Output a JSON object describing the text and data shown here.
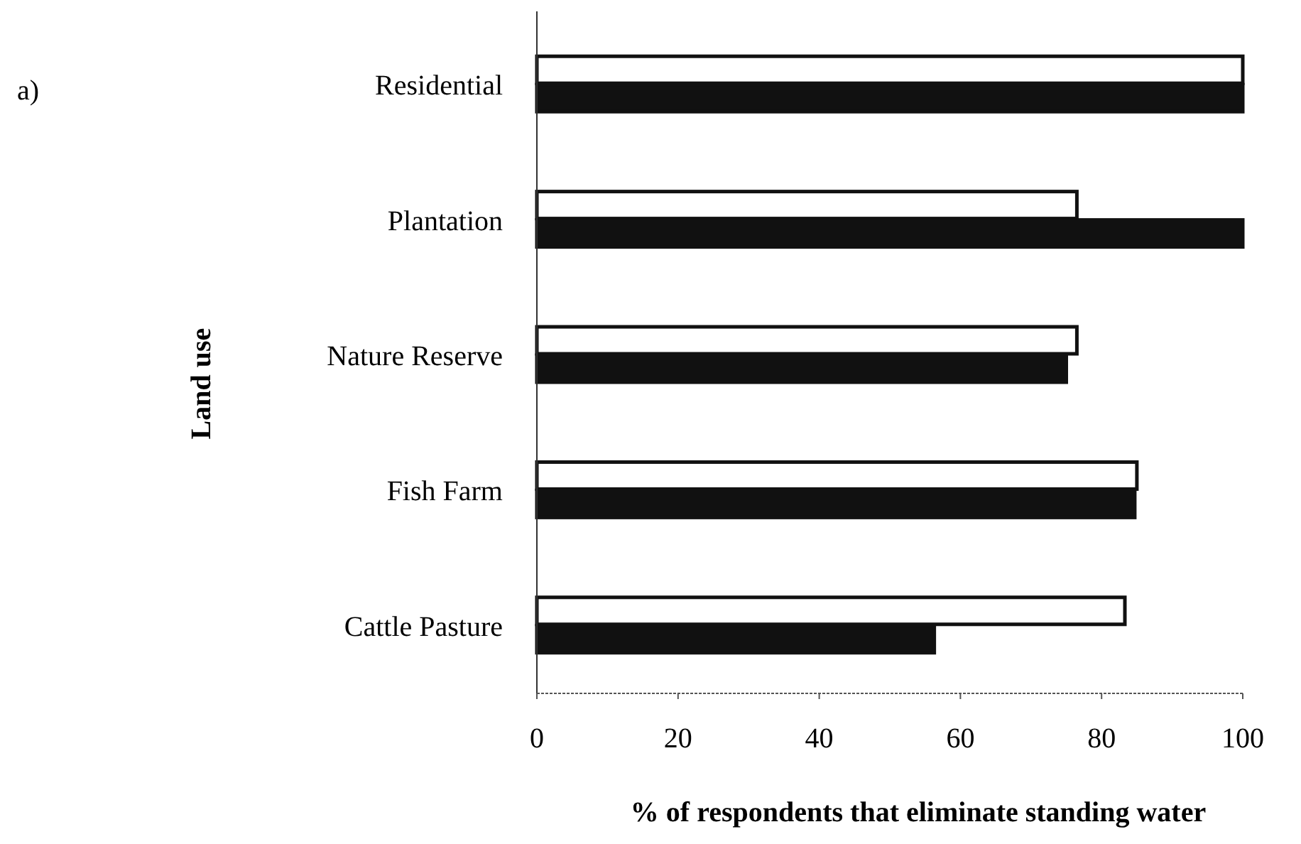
{
  "chart_data": {
    "type": "bar",
    "orientation": "horizontal",
    "ylabel": "Land use",
    "xlabel": "% of respondents that eliminate standing water",
    "annotations": [
      "a)"
    ],
    "categories": [
      "Residential",
      "Plantation",
      "Nature Reserve",
      "Fish Farm",
      "Cattle Pasture"
    ],
    "series": [
      {
        "color": "#ffffff",
        "values": [
          100,
          76.5,
          76.5,
          85,
          83.3
        ]
      },
      {
        "color": "#111111",
        "values": [
          100,
          100,
          75,
          84.7,
          56.3
        ]
      }
    ],
    "xlim": [
      0,
      100
    ],
    "xticks": [
      0,
      20,
      40,
      60,
      80,
      100
    ],
    "grid": false
  }
}
